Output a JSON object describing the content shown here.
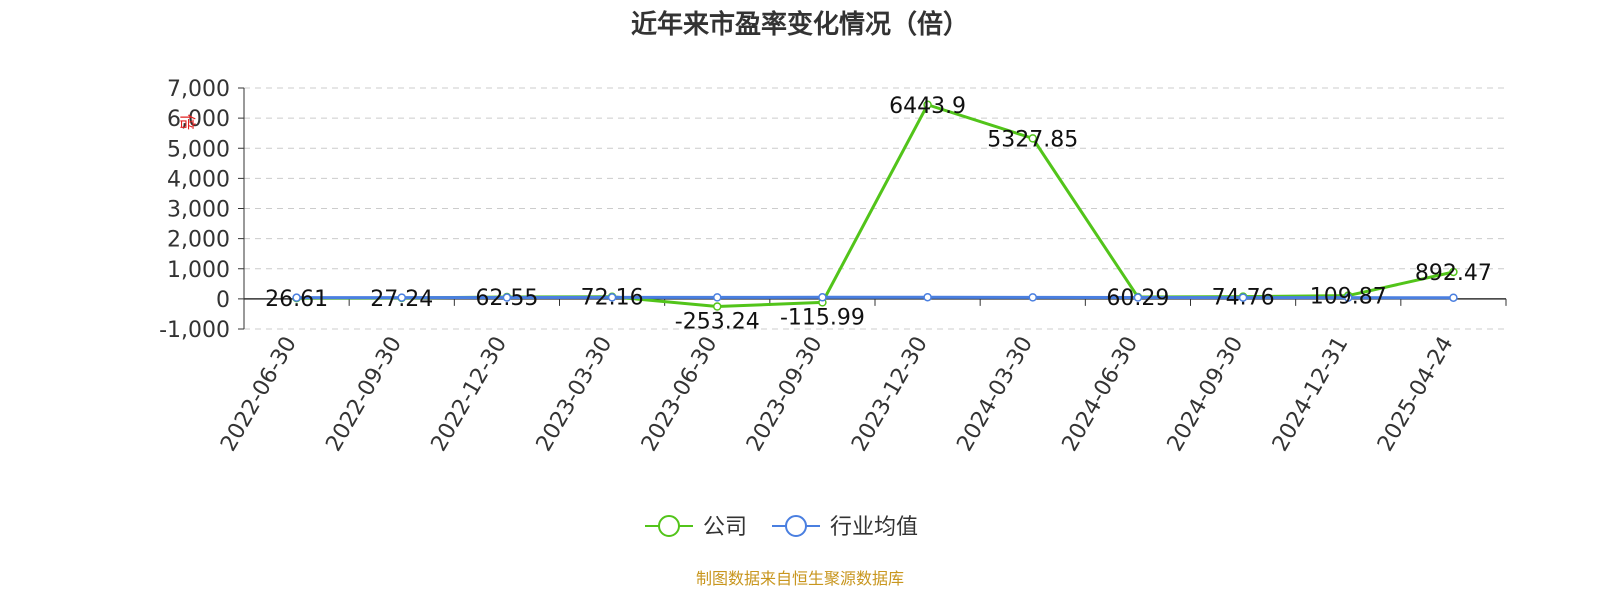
{
  "chart_data": {
    "type": "line",
    "title": "近年来市盈率变化情况（倍）",
    "y_unit": "倍",
    "categories": [
      "2022-06-30",
      "2022-09-30",
      "2022-12-30",
      "2023-03-30",
      "2023-06-30",
      "2023-09-30",
      "2023-12-30",
      "2024-03-30",
      "2024-06-30",
      "2024-09-30",
      "2024-12-31",
      "2025-04-24"
    ],
    "series": [
      {
        "name": "公司",
        "color": "#52c41a",
        "values": [
          26.61,
          27.24,
          62.55,
          72.16,
          -253.24,
          -115.99,
          6443.9,
          5327.85,
          60.29,
          74.76,
          109.87,
          892.47
        ],
        "labels": [
          "26.61",
          "27.24",
          "62.55",
          "72.16",
          "-253.24",
          "-115.99",
          "6443.9",
          "5327.85",
          "60.29",
          "74.76",
          "109.87",
          "892.47"
        ]
      },
      {
        "name": "行业均值",
        "color": "#4a7fe0",
        "values": [
          40,
          42,
          45,
          48,
          50,
          52,
          55,
          50,
          45,
          42,
          40,
          38
        ]
      }
    ],
    "ylim": [
      -1000,
      7000
    ],
    "yticks": [
      -1000,
      0,
      1000,
      2000,
      3000,
      4000,
      5000,
      6000,
      7000
    ],
    "ytick_labels": [
      "-1,000",
      "0",
      "1,000",
      "2,000",
      "3,000",
      "4,000",
      "5,000",
      "6,000",
      "7,000"
    ],
    "grid": true,
    "legend_position": "bottom-center",
    "source": "制图数据来自恒生聚源数据库"
  }
}
